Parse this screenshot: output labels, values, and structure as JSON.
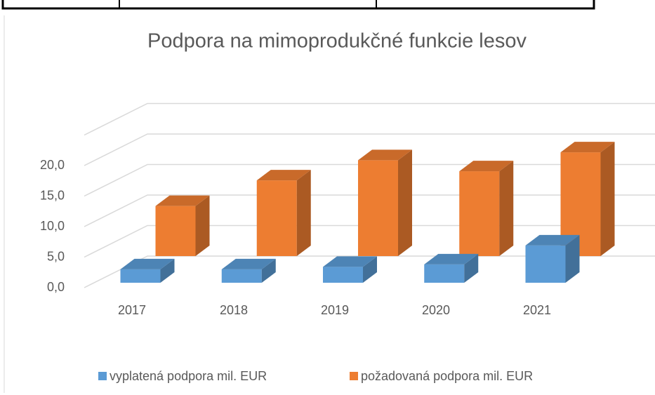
{
  "chart_data": {
    "type": "bar3d",
    "title": "Podpora na mimoprodukčné funkcie lesov",
    "categories": [
      "2017",
      "2018",
      "2019",
      "2020",
      "2021"
    ],
    "series": [
      {
        "name": "vyplatená podpora mil. EUR",
        "color": "#5b9bd5",
        "values": [
          2.2,
          2.2,
          2.6,
          3.0,
          6.1
        ]
      },
      {
        "name": "požadovaná podpora mil. EUR",
        "color": "#ed7d31",
        "values": [
          8.2,
          12.4,
          15.7,
          13.9,
          17.0
        ]
      }
    ],
    "ylim": [
      0,
      25
    ],
    "yticks": [
      {
        "value": 0,
        "label": "0,0"
      },
      {
        "value": 5,
        "label": "5,0"
      },
      {
        "value": 10,
        "label": "10,0"
      },
      {
        "value": 15,
        "label": "15,0"
      },
      {
        "value": 20,
        "label": "20,0"
      }
    ],
    "grid": true,
    "legend": "bottom"
  }
}
